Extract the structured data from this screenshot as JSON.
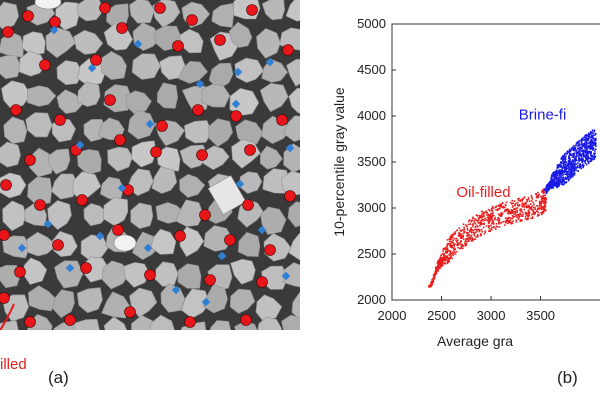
{
  "figure": {
    "panel_a_label": "(a)",
    "panel_b_label": "(b)",
    "micro_label": "illed",
    "colors": {
      "oil": "#e81f1f",
      "brine": "#1b1be6",
      "pore_blue": "#2f7fd6",
      "grain": "#b5b5b5"
    }
  },
  "chart_data": {
    "type": "scatter",
    "title": "",
    "xlabel": "Average gra",
    "ylabel": "10-percentile gray value",
    "xlim": [
      2000,
      4100
    ],
    "ylim": [
      2000,
      5000
    ],
    "x_ticks": [
      "2000",
      "2500",
      "3000",
      "3500"
    ],
    "y_ticks": [
      "2000",
      "2500",
      "3000",
      "3500",
      "4000",
      "4500",
      "5000"
    ],
    "grid": false,
    "annotations": [
      {
        "text": "Oil-filled",
        "color": "#e81f1f",
        "x": 2650,
        "y": 3120
      },
      {
        "text": "Brine-fi",
        "color": "#1b1be6",
        "x": 3280,
        "y": 3960
      }
    ],
    "series": [
      {
        "name": "Oil-filled",
        "color": "#e81f1f",
        "x": [
          2380,
          2450,
          2500,
          2550,
          2600,
          2700,
          2800,
          2900,
          3000,
          3100,
          3200,
          3300,
          3400,
          3500,
          3550
        ],
        "y": [
          2150,
          2350,
          2450,
          2520,
          2580,
          2680,
          2760,
          2830,
          2880,
          2920,
          2950,
          2980,
          3000,
          3050,
          3100
        ]
      },
      {
        "name": "Brine-filled",
        "color": "#1b1be6",
        "x": [
          3550,
          3600,
          3650,
          3700,
          3750,
          3800,
          3850,
          3900,
          3950,
          4000,
          4050
        ],
        "y": [
          3200,
          3280,
          3330,
          3380,
          3430,
          3480,
          3530,
          3580,
          3620,
          3660,
          3700
        ]
      }
    ]
  }
}
